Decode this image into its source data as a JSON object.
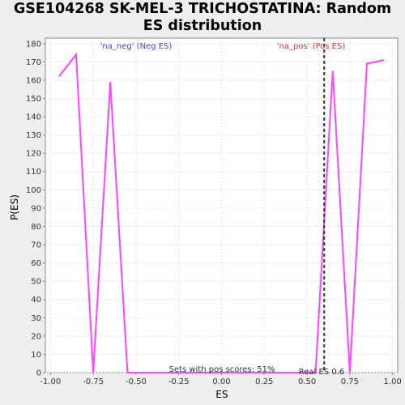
{
  "chart_data": {
    "type": "line",
    "title": "GSE104268 SK-MEL-3 TRICHOSTATINA: Random\nES distribution",
    "xlabel": "ES",
    "ylabel": "P(ES)",
    "xlim": [
      -1.03,
      1.03
    ],
    "ylim": [
      0,
      183
    ],
    "xticks": [
      -1.0,
      -0.75,
      -0.5,
      -0.25,
      0.0,
      0.25,
      0.5,
      0.75,
      1.0
    ],
    "xtick_labels": [
      "-1.00",
      "-0.75",
      "-0.50",
      "-0.25",
      "0.00",
      "0.25",
      "0.50",
      "0.75",
      "1.00"
    ],
    "yticks": [
      0,
      10,
      20,
      30,
      40,
      50,
      60,
      70,
      80,
      90,
      100,
      110,
      120,
      130,
      140,
      150,
      160,
      170,
      180
    ],
    "grid": true,
    "series": [
      {
        "color": "#ff44ff",
        "x": [
          -0.95,
          -0.85,
          -0.75,
          -0.65,
          -0.55,
          -0.45,
          -0.35,
          -0.25,
          -0.15,
          -0.05,
          0.05,
          0.15,
          0.25,
          0.35,
          0.45,
          0.55,
          0.65,
          0.75,
          0.85,
          0.95
        ],
        "y": [
          162,
          174,
          0,
          159,
          0,
          0,
          0,
          0,
          0,
          0,
          0,
          0,
          0,
          0,
          0,
          0,
          165,
          0,
          169,
          171
        ]
      }
    ],
    "real_es": 0.6,
    "real_es_label": "Real ES 0.6",
    "neg_label": "'na_neg' (Neg ES)",
    "pos_label": "'na_pos' (Pos ES)",
    "neg_color": "#4444cc",
    "pos_color": "#dd3333",
    "footer_text": "Sets with pos scores: 51%"
  }
}
